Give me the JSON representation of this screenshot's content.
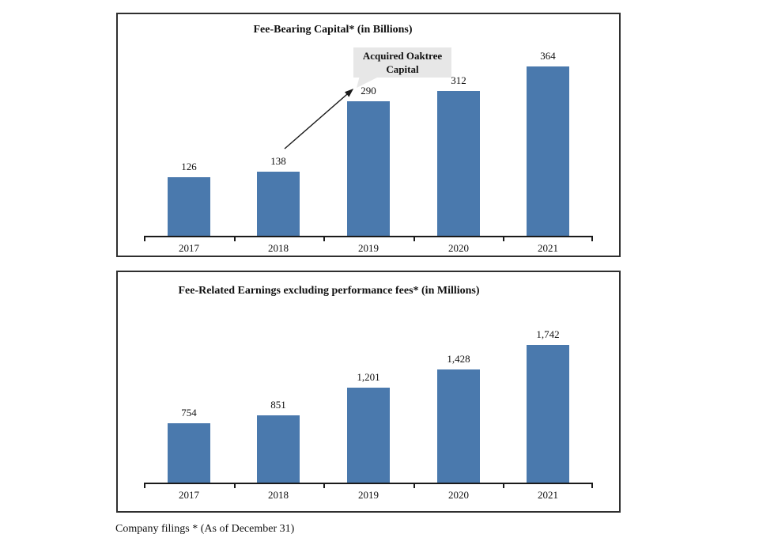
{
  "colors": {
    "bar_fill": "#4A79AD",
    "axis": "#1a1a1a",
    "box_border": "#2f2f2f",
    "callout_bg": "#E7E7E7",
    "text": "#111111"
  },
  "footer": {
    "text": "Company filings * (As of December 31)"
  },
  "chart_data": [
    {
      "type": "bar",
      "title": "Fee-Bearing Capital* (in Billions)",
      "categories": [
        "2017",
        "2018",
        "2019",
        "2020",
        "2021"
      ],
      "values": [
        126,
        138,
        290,
        312,
        364
      ],
      "value_labels": [
        "126",
        "138",
        "290",
        "312",
        "364"
      ],
      "xlabel": "",
      "ylabel": "",
      "ylim": [
        0,
        380
      ],
      "grid": false,
      "legend": false,
      "bar_color": "#4A79AD",
      "annotation": {
        "text": "Acquired Oaktree Capital",
        "line1": "Acquired Oaktree",
        "line2": "Capital",
        "target_category": "2019",
        "target_value": 290
      }
    },
    {
      "type": "bar",
      "title": "Fee-Related Earnings excluding performance fees* (in Millions)",
      "categories": [
        "2017",
        "2018",
        "2019",
        "2020",
        "2021"
      ],
      "values": [
        754,
        851,
        1201,
        1428,
        1742
      ],
      "value_labels": [
        "754",
        "851",
        "1,201",
        "1,428",
        "1,742"
      ],
      "xlabel": "",
      "ylabel": "",
      "ylim": [
        0,
        1800
      ],
      "grid": false,
      "legend": false,
      "bar_color": "#4A79AD"
    }
  ]
}
